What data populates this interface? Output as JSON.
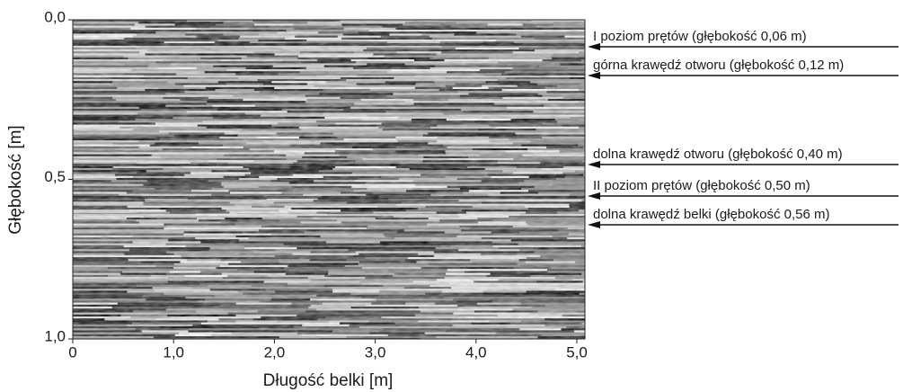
{
  "chart_data": {
    "type": "radargram",
    "xlabel": "Długość belki [m]",
    "ylabel": "Głębokość [m]",
    "xlim": [
      0,
      5.08
    ],
    "ylim": [
      0,
      1.0
    ],
    "xticks": [
      0,
      {
        "value": 1,
        "label": "1,0"
      },
      {
        "value": 2,
        "label": "2,0"
      },
      {
        "value": 3,
        "label": "3,0"
      },
      {
        "value": 4,
        "label": "4,0"
      },
      {
        "value": 5,
        "label": "5,0"
      }
    ],
    "yticks": [
      {
        "value": 0,
        "label": "0,0"
      },
      {
        "value": 0.5,
        "label": "0,5"
      },
      {
        "value": 1,
        "label": "1,0"
      }
    ],
    "annotations": [
      "I poziom prętów (głębokość 0,06 m)",
      "górna krawędź otworu (głębokość 0,12 m)",
      "dolna krawędź otworu (głębokość 0,40 m)",
      "II poziom prętów (głębokość 0,50 m)",
      "dolna krawędź belki (głębokość 0,56 m)"
    ]
  }
}
